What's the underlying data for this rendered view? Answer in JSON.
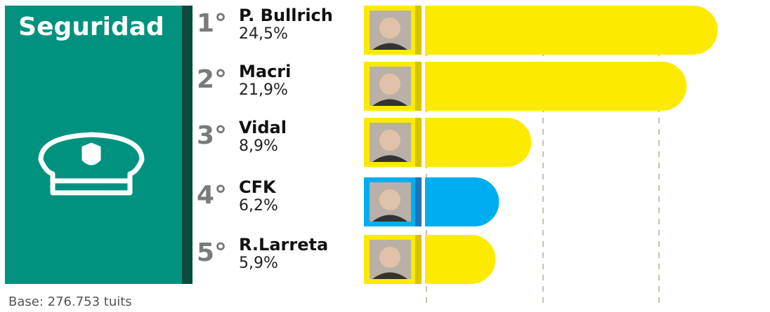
{
  "chart_data": {
    "type": "bar",
    "orientation": "horizontal",
    "title": "Seguridad",
    "ranks": [
      "1°",
      "2°",
      "3°",
      "4°",
      "5°"
    ],
    "categories": [
      "P. Bullrich",
      "Macri",
      "Vidal",
      "CFK",
      "R.Larreta"
    ],
    "values": [
      24.5,
      21.9,
      8.9,
      6.2,
      5.9
    ],
    "value_labels": [
      "24,5%",
      "21,9%",
      "8,9%",
      "6,2%",
      "5,9%"
    ],
    "colors": [
      "#fcea00",
      "#fcea00",
      "#fcea00",
      "#00aeef",
      "#fcea00"
    ],
    "xlim": [
      0,
      25
    ],
    "note": "Base: 276.753 tuits"
  }
}
